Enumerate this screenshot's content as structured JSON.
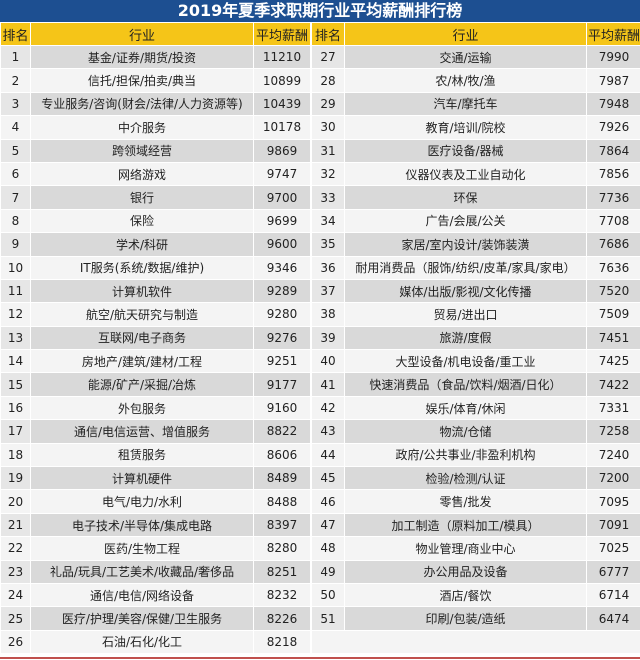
{
  "title": "2019年夏季求职期行业平均薪酬排行榜",
  "headers": {
    "rank": "排名",
    "industry": "行业",
    "salary": "平均薪酬"
  },
  "colors": {
    "title_bg": "#1d4f91",
    "header_bg": "#f5c518",
    "row_odd": "#d9d9d9",
    "row_even": "#f4f4f4",
    "bottom_line": "#c0504d"
  },
  "left_rows": [
    {
      "rank": "1",
      "industry": "基金/证券/期货/投资",
      "salary": "11210"
    },
    {
      "rank": "2",
      "industry": "信托/担保/拍卖/典当",
      "salary": "10899"
    },
    {
      "rank": "3",
      "industry": "专业服务/咨询(财会/法律/人力资源等)",
      "salary": "10439"
    },
    {
      "rank": "4",
      "industry": "中介服务",
      "salary": "10178"
    },
    {
      "rank": "5",
      "industry": "跨领域经营",
      "salary": "9869"
    },
    {
      "rank": "6",
      "industry": "网络游戏",
      "salary": "9747"
    },
    {
      "rank": "7",
      "industry": "银行",
      "salary": "9700"
    },
    {
      "rank": "8",
      "industry": "保险",
      "salary": "9699"
    },
    {
      "rank": "9",
      "industry": "学术/科研",
      "salary": "9600"
    },
    {
      "rank": "10",
      "industry": "IT服务(系统/数据/维护)",
      "salary": "9346"
    },
    {
      "rank": "11",
      "industry": "计算机软件",
      "salary": "9289"
    },
    {
      "rank": "12",
      "industry": "航空/航天研究与制造",
      "salary": "9280"
    },
    {
      "rank": "13",
      "industry": "互联网/电子商务",
      "salary": "9276"
    },
    {
      "rank": "14",
      "industry": "房地产/建筑/建材/工程",
      "salary": "9251"
    },
    {
      "rank": "15",
      "industry": "能源/矿产/采掘/冶炼",
      "salary": "9177"
    },
    {
      "rank": "16",
      "industry": "外包服务",
      "salary": "9160"
    },
    {
      "rank": "17",
      "industry": "通信/电信运营、增值服务",
      "salary": "8822"
    },
    {
      "rank": "18",
      "industry": "租赁服务",
      "salary": "8606"
    },
    {
      "rank": "19",
      "industry": "计算机硬件",
      "salary": "8489"
    },
    {
      "rank": "20",
      "industry": "电气/电力/水利",
      "salary": "8488"
    },
    {
      "rank": "21",
      "industry": "电子技术/半导体/集成电路",
      "salary": "8397"
    },
    {
      "rank": "22",
      "industry": "医药/生物工程",
      "salary": "8280"
    },
    {
      "rank": "23",
      "industry": "礼品/玩具/工艺美术/收藏品/奢侈品",
      "salary": "8251"
    },
    {
      "rank": "24",
      "industry": "通信/电信/网络设备",
      "salary": "8232"
    },
    {
      "rank": "25",
      "industry": "医疗/护理/美容/保健/卫生服务",
      "salary": "8226"
    },
    {
      "rank": "26",
      "industry": "石油/石化/化工",
      "salary": "8218"
    }
  ],
  "right_rows": [
    {
      "rank": "27",
      "industry": "交通/运输",
      "salary": "7990"
    },
    {
      "rank": "28",
      "industry": "农/林/牧/渔",
      "salary": "7987"
    },
    {
      "rank": "29",
      "industry": "汽车/摩托车",
      "salary": "7948"
    },
    {
      "rank": "30",
      "industry": "教育/培训/院校",
      "salary": "7926"
    },
    {
      "rank": "31",
      "industry": "医疗设备/器械",
      "salary": "7864"
    },
    {
      "rank": "32",
      "industry": "仪器仪表及工业自动化",
      "salary": "7856"
    },
    {
      "rank": "33",
      "industry": "环保",
      "salary": "7736"
    },
    {
      "rank": "34",
      "industry": "广告/会展/公关",
      "salary": "7708"
    },
    {
      "rank": "35",
      "industry": "家居/室内设计/装饰装潢",
      "salary": "7686"
    },
    {
      "rank": "36",
      "industry": "耐用消费品（服饰/纺织/皮革/家具/家电）",
      "salary": "7636"
    },
    {
      "rank": "37",
      "industry": "媒体/出版/影视/文化传播",
      "salary": "7520"
    },
    {
      "rank": "38",
      "industry": "贸易/进出口",
      "salary": "7509"
    },
    {
      "rank": "39",
      "industry": "旅游/度假",
      "salary": "7451"
    },
    {
      "rank": "40",
      "industry": "大型设备/机电设备/重工业",
      "salary": "7425"
    },
    {
      "rank": "41",
      "industry": "快速消费品（食品/饮料/烟酒/日化）",
      "salary": "7422"
    },
    {
      "rank": "42",
      "industry": "娱乐/体育/休闲",
      "salary": "7331"
    },
    {
      "rank": "43",
      "industry": "物流/仓储",
      "salary": "7258"
    },
    {
      "rank": "44",
      "industry": "政府/公共事业/非盈利机构",
      "salary": "7240"
    },
    {
      "rank": "45",
      "industry": "检验/检测/认证",
      "salary": "7200"
    },
    {
      "rank": "46",
      "industry": "零售/批发",
      "salary": "7095"
    },
    {
      "rank": "47",
      "industry": "加工制造（原料加工/模具）",
      "salary": "7091"
    },
    {
      "rank": "48",
      "industry": "物业管理/商业中心",
      "salary": "7025"
    },
    {
      "rank": "49",
      "industry": "办公用品及设备",
      "salary": "6777"
    },
    {
      "rank": "50",
      "industry": "酒店/餐饮",
      "salary": "6714"
    },
    {
      "rank": "51",
      "industry": "印刷/包装/造纸",
      "salary": "6474"
    }
  ]
}
